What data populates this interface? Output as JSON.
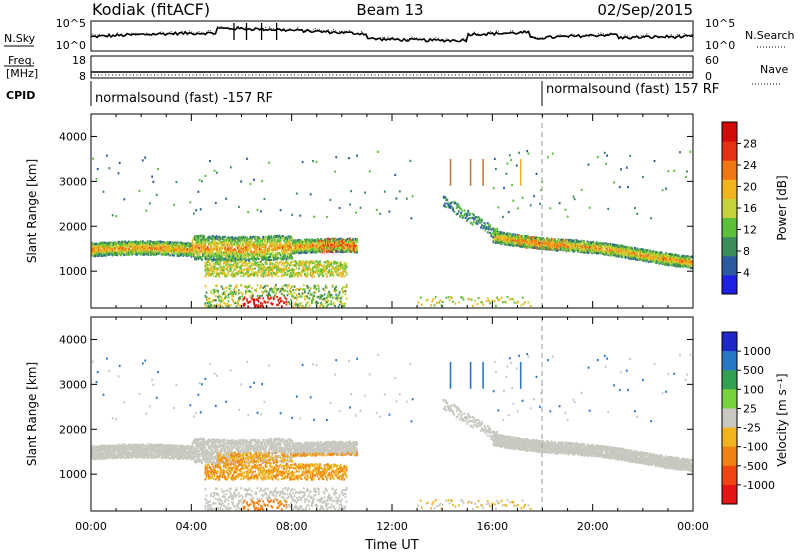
{
  "header": {
    "station": "Kodiak (fitACF)",
    "beam": "Beam 13",
    "date": "02/Sep/2015"
  },
  "top_panels": {
    "nsky_label": "N.Sky",
    "nsky_ticks": [
      "10^5",
      "10^0"
    ],
    "nsearch_label": "N.Search",
    "nsearch_ticks": [
      "10^5",
      "10^0"
    ],
    "freq_label": "Freq.",
    "freq_unit": "[MHz]",
    "freq_ticks": [
      "18",
      "8"
    ],
    "nave_label": "Nave",
    "nave_ticks": [
      "60",
      "0"
    ],
    "cpid_label": "CPID",
    "cpid_segments": [
      {
        "start": "00:00",
        "text": "normalsound (fast) -157 RF"
      },
      {
        "start": "18:00",
        "text": "normalsound (fast) 157 RF"
      }
    ]
  },
  "chart_data": [
    {
      "type": "heatmap",
      "title": "",
      "ylabel": "Slant Range [km]",
      "xlabel": "Time UT",
      "xlim": [
        "00:00",
        "24:00"
      ],
      "ylim": [
        180,
        4500
      ],
      "yticks": [
        "1000",
        "2000",
        "3000",
        "4000"
      ],
      "xticks": [
        "00:00",
        "04:00",
        "08:00",
        "12:00",
        "16:00",
        "20:00",
        "00:00"
      ],
      "colorbar": {
        "label": "Power [dB]",
        "ticks": [
          "4",
          "8",
          "12",
          "16",
          "20",
          "24",
          "28"
        ],
        "range": [
          0,
          30
        ],
        "colors": [
          "#1f1fe6",
          "#2b5aa0",
          "#3c8c5a",
          "#5bbf3a",
          "#c8d23a",
          "#f0b41e",
          "#f07814",
          "#e63214",
          "#d20a0a"
        ]
      },
      "features": [
        {
          "name": "main band",
          "time_start_h": 0,
          "time_end_h": 10.5,
          "range_km": [
            1350,
            1650
          ]
        },
        {
          "name": "evening band",
          "time_start_h": 16,
          "time_end_h": 24,
          "range_km": [
            1200,
            2000
          ]
        },
        {
          "name": "near-range echoes",
          "time_start_h": 5,
          "time_end_h": 10,
          "range_km": [
            250,
            1200
          ]
        }
      ]
    },
    {
      "type": "heatmap",
      "title": "",
      "ylabel": "Slant Range [km]",
      "xlabel": "Time UT",
      "xlim": [
        "00:00",
        "24:00"
      ],
      "ylim": [
        180,
        4500
      ],
      "yticks": [
        "1000",
        "2000",
        "3000",
        "4000"
      ],
      "xticks": [
        "00:00",
        "04:00",
        "08:00",
        "12:00",
        "16:00",
        "20:00",
        "00:00"
      ],
      "colorbar": {
        "label": "Velocity [m s⁻¹]",
        "ticks": [
          "1000",
          "500",
          "100",
          "25",
          "-25",
          "-100",
          "-500",
          "-1000"
        ],
        "range": [
          -1000,
          1000
        ],
        "colors": [
          "#1e28c8",
          "#2878c8",
          "#32a050",
          "#78d23c",
          "#c8c8c0",
          "#f0b41e",
          "#f08214",
          "#f04614",
          "#e61414"
        ]
      }
    }
  ]
}
